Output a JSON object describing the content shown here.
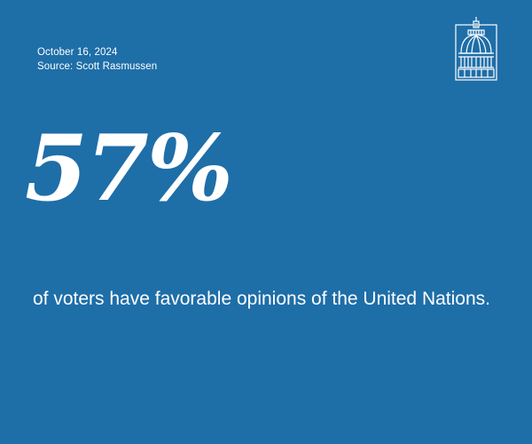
{
  "header": {
    "date": "October 16, 2024",
    "source": "Source: Scott Rasmussen"
  },
  "logo": {
    "icon": "capitol-dome-icon"
  },
  "stat": {
    "value": "57%",
    "caption": "of voters have favorable opinions of the United Nations."
  },
  "colors": {
    "background": "#1e6ea8",
    "text": "#ffffff"
  }
}
